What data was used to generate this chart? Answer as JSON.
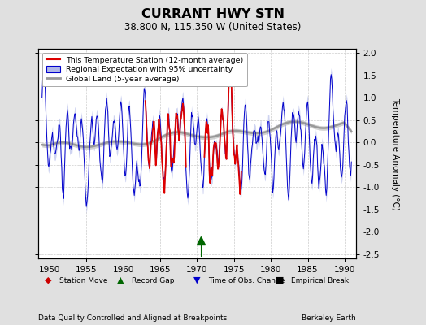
{
  "title": "CURRANT HWY STN",
  "subtitle": "38.800 N, 115.350 W (United States)",
  "xlabel_left": "Data Quality Controlled and Aligned at Breakpoints",
  "xlabel_right": "Berkeley Earth",
  "ylabel": "Temperature Anomaly (°C)",
  "xlim": [
    1948.5,
    1991.5
  ],
  "ylim": [
    -2.6,
    2.1
  ],
  "yticks": [
    -2.5,
    -2.0,
    -1.5,
    -1.0,
    -0.5,
    0.0,
    0.5,
    1.0,
    1.5,
    2.0
  ],
  "xticks": [
    1950,
    1955,
    1960,
    1965,
    1970,
    1975,
    1980,
    1985,
    1990
  ],
  "bg_color": "#e0e0e0",
  "plot_bg_color": "#ffffff",
  "grid_color": "#cccccc",
  "red_line_color": "#dd0000",
  "blue_line_color": "#0000cc",
  "blue_fill_color": "#b0b8e8",
  "gray_line_color": "#999999",
  "gray_fill_color": "#cccccc",
  "record_gap_x": 1970.5,
  "record_gap_color": "#006600",
  "legend_labels": [
    "This Temperature Station (12-month average)",
    "Regional Expectation with 95% uncertainty",
    "Global Land (5-year average)"
  ],
  "marker_legend": [
    {
      "sym": "◆",
      "color": "#cc0000",
      "label": "Station Move"
    },
    {
      "sym": "▲",
      "color": "#006600",
      "label": "Record Gap"
    },
    {
      "sym": "▼",
      "color": "#0000cc",
      "label": "Time of Obs. Change"
    },
    {
      "sym": "■",
      "color": "#000000",
      "label": "Empirical Break"
    }
  ]
}
